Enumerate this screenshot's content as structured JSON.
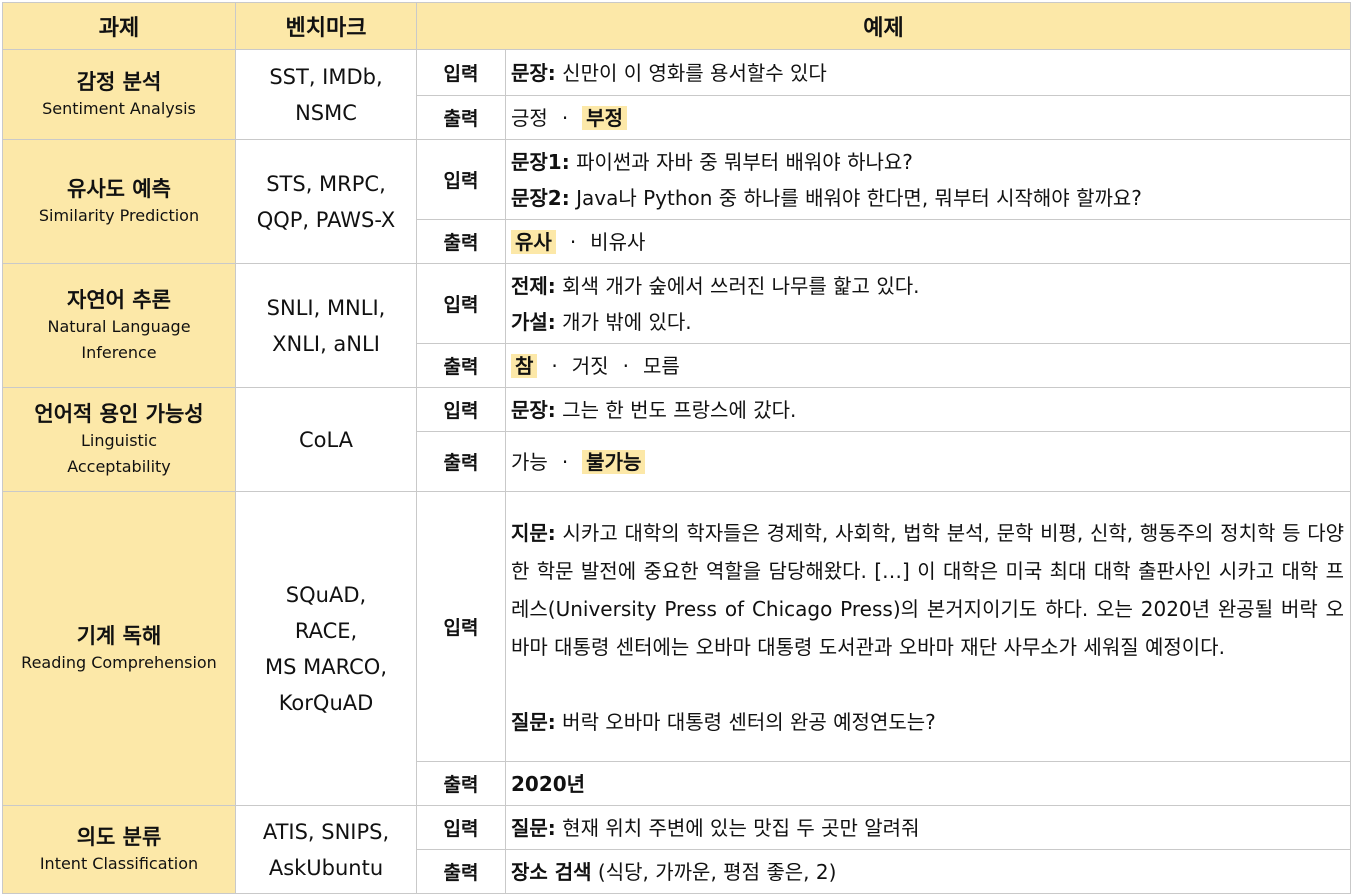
{
  "header": {
    "task": "과제",
    "benchmark": "벤치마크",
    "example": "예제"
  },
  "io": {
    "input": "입력",
    "output": "출력"
  },
  "tasks": [
    {
      "name_ko": "감정 분석",
      "name_en": "Sentiment Analysis",
      "benchmarks": [
        "SST, IMDb,",
        "NSMC"
      ],
      "input": {
        "label": "문장:",
        "text": " 신만이 이 영화를 용서할수 있다"
      },
      "output": {
        "opt1": "긍정",
        "opt2": "부정"
      }
    },
    {
      "name_ko": "유사도 예측",
      "name_en": "Similarity Prediction",
      "benchmarks": [
        "STS, MRPC,",
        "QQP, PAWS-X"
      ],
      "input": {
        "label1": "문장1:",
        "text1": " 파이썬과 자바 중 뭐부터 배워야 하나요?",
        "label2": "문장2:",
        "text2": " Java나 Python 중 하나를 배워야 한다면, 뭐부터 시작해야 할까요?"
      },
      "output": {
        "opt1": "유사",
        "opt2": "비유사"
      }
    },
    {
      "name_ko": "자연어 추론",
      "name_en1": "Natural Language",
      "name_en2": "Inference",
      "benchmarks": [
        "SNLI, MNLI,",
        "XNLI, aNLI"
      ],
      "input": {
        "label1": "전제:",
        "text1": " 회색 개가 숲에서 쓰러진 나무를 핥고 있다.",
        "label2": "가설:",
        "text2": " 개가 밖에 있다."
      },
      "output": {
        "opt1": "참",
        "opt2": "거짓",
        "opt3": "모름"
      }
    },
    {
      "name_ko": "언어적 용인 가능성",
      "name_en1": "Linguistic",
      "name_en2": "Acceptability",
      "benchmarks": [
        "CoLA"
      ],
      "input": {
        "label": "문장:",
        "text": " 그는 한 번도 프랑스에 갔다."
      },
      "output": {
        "opt1": "가능",
        "opt2": "불가능"
      }
    },
    {
      "name_ko": "기계 독해",
      "name_en": "Reading Comprehension",
      "benchmarks": [
        "SQuAD,",
        "RACE,",
        "MS MARCO,",
        "KorQuAD"
      ],
      "input": {
        "label1": "지문:",
        "text1": " 시카고 대학의 학자들은 경제학, 사회학, 법학 분석, 문학 비평, 신학, 행동주의 정치학 등 다양한 학문 발전에 중요한 역할을 담당해왔다. […] 이 대학은 미국 최대 대학 출판사인 시카고 대학 프레스(University Press of Chicago Press)의 본거지이기도 하다. 오는 2020년 완공될 버락 오바마 대통령 센터에는 오바마 대통령 도서관과 오바마 재단 사무소가 세워질 예정이다.",
        "label2": "질문:",
        "text2": " 버락 오바마 대통령 센터의 완공 예정연도는?"
      },
      "output": {
        "answer": "2020년"
      }
    },
    {
      "name_ko": "의도 분류",
      "name_en": "Intent Classification",
      "benchmarks": [
        "ATIS, SNIPS,",
        "AskUbuntu"
      ],
      "input": {
        "label": "질문:",
        "text": " 현재 위치 주변에 있는 맛집 두 곳만 알려줘"
      },
      "output": {
        "label": "장소 검색",
        "text": " (식당, 가까운, 평점 좋은, 2)"
      }
    }
  ]
}
